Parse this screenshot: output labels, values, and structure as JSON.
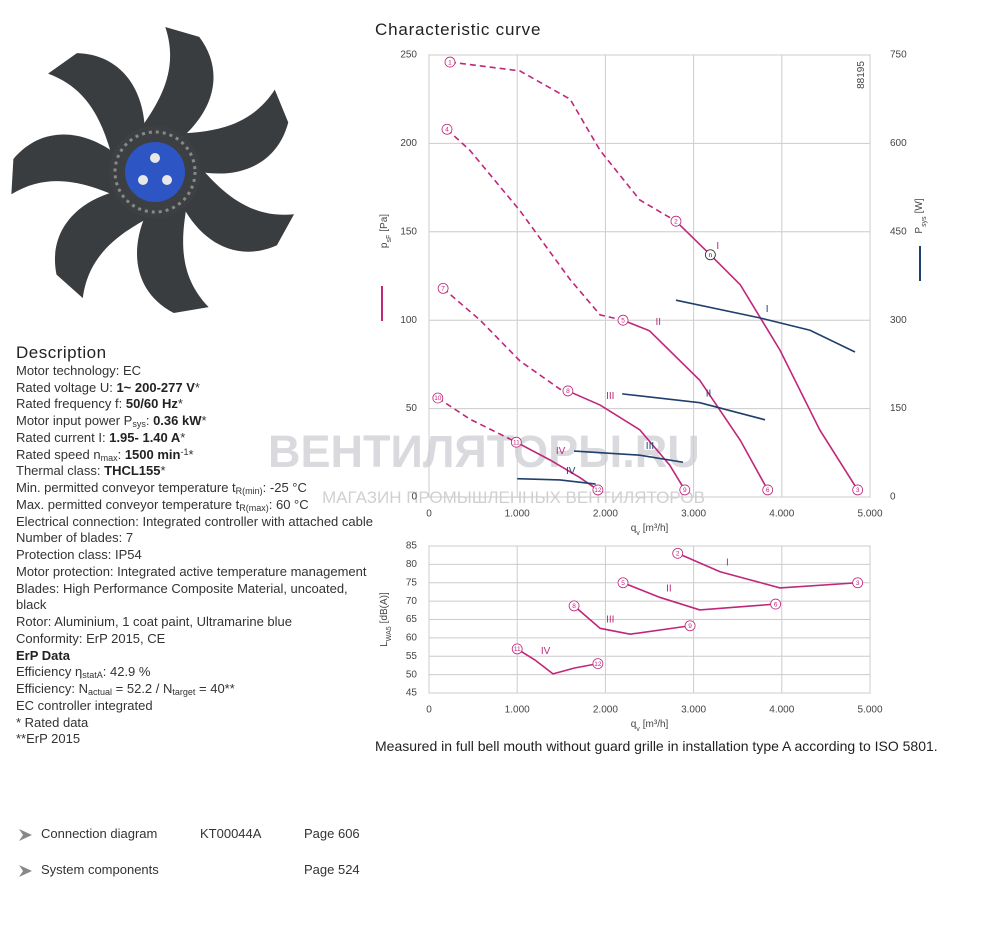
{
  "header": {
    "title": "Characteristic curve"
  },
  "watermark": {
    "main": "ВЕНТИЛЯТОРЫ.RU",
    "sub": "МАГАЗИН ПРОМЫШЛЕННЫХ ВЕНТИЛЯТОРОВ"
  },
  "description": {
    "title": "Description",
    "lines": [
      [
        "Motor technology: EC"
      ],
      [
        "Rated voltage U: ",
        {
          "t": "1~ 200-277 V",
          "s": "b"
        },
        "*"
      ],
      [
        "Rated frequency f: ",
        {
          "t": "50/60 Hz",
          "s": "b"
        },
        "*"
      ],
      [
        "Motor input power P",
        {
          "t": "sys",
          "s": "sub"
        },
        ": ",
        {
          "t": "0.36 kW",
          "s": "b"
        },
        "*"
      ],
      [
        "Rated current I: ",
        {
          "t": "1.95- 1.40 A",
          "s": "b"
        },
        "*"
      ],
      [
        "Rated speed n",
        {
          "t": "max",
          "s": "sub"
        },
        ": ",
        {
          "t": "1500 min",
          "s": "b"
        },
        {
          "t": "-1",
          "s": "sup"
        },
        "*"
      ],
      [
        "Thermal class: ",
        {
          "t": "THCL155",
          "s": "b"
        },
        "*"
      ],
      [
        "Min. permitted conveyor temperature t",
        {
          "t": "R(min)",
          "s": "sub"
        },
        ": -25  °C"
      ],
      [
        "Max. permitted conveyor temperature t",
        {
          "t": "R(max)",
          "s": "sub"
        },
        ": 60  °C"
      ],
      [
        "Electrical connection: Integrated controller with attached cable"
      ],
      [
        "Number of blades: 7"
      ],
      [
        "Protection class: IP54"
      ],
      [
        "Motor protection: Integrated active temperature management"
      ],
      [
        "Blades: High Performance Composite Material, uncoated, black"
      ],
      [
        "Rotor: Aluminium, 1 coat paint, Ultramarine blue"
      ],
      [
        "Conformity: ErP 2015, CE"
      ],
      [
        {
          "t": "ErP Data",
          "s": "b"
        }
      ],
      [
        "Efficiency η",
        {
          "t": "statA",
          "s": "sub"
        },
        ": 42.9 %"
      ],
      [
        "Efficiency: N",
        {
          "t": "actual",
          "s": "sub"
        },
        " = 52.2 / N",
        {
          "t": "target",
          "s": "sub"
        },
        " = 40**"
      ],
      [
        "EC controller integrated"
      ],
      [
        "* Rated data"
      ],
      [
        "**ErP 2015"
      ]
    ]
  },
  "links": [
    {
      "name": "Connection diagram",
      "code": "KT00044A",
      "page": "Page 606"
    },
    {
      "name": "System components",
      "code": null,
      "page": "Page 524"
    }
  ],
  "note": "Measured in full bell mouth without guard grille in installation type A according to ISO 5801.",
  "chart_data": [
    {
      "type": "line",
      "annotation": "88195",
      "x_label": {
        "main": "q",
        "sub": "v",
        "unit": "[m³/h]"
      },
      "y_label": {
        "main": "p",
        "sub": "sF",
        "unit": "[Pa]",
        "color": "#c0267a"
      },
      "y2_label": {
        "main": "P",
        "sub": "sys",
        "unit": "[W]",
        "color": "#1f3f6e"
      },
      "xlim": [
        0,
        5000
      ],
      "xticks": [
        0,
        {
          "value": 1000,
          "label": "1.000"
        },
        {
          "value": 2000,
          "label": "2.000"
        },
        {
          "value": 3000,
          "label": "3.000"
        },
        {
          "value": 4000,
          "label": "4.000"
        },
        {
          "value": 5000,
          "label": "5.000"
        }
      ],
      "ylim": [
        0,
        250
      ],
      "yticks": [
        0,
        50,
        100,
        150,
        200,
        250
      ],
      "y2lim": [
        0,
        750
      ],
      "y2ticks": [
        0,
        150,
        300,
        450,
        600,
        750
      ],
      "grid": true,
      "series": [
        {
          "color": "#c0267a",
          "dashed": true,
          "x": [
            238,
            1030,
            1600,
            1940,
            2390,
            2800
          ],
          "values": [
            246,
            241,
            225,
            196,
            168,
            156
          ]
        },
        {
          "name": "I",
          "color": "#c0267a",
          "x": [
            2800,
            3190,
            3530,
            3980,
            4430,
            4860
          ],
          "values": [
            156,
            137,
            120,
            83,
            38,
            4
          ]
        },
        {
          "color": "#c0267a",
          "dashed": true,
          "x": [
            204,
            465,
            1030,
            1600,
            1940,
            2200
          ],
          "values": [
            208,
            196,
            162,
            123,
            103,
            100
          ]
        },
        {
          "name": "II",
          "color": "#c0267a",
          "x": [
            2200,
            2500,
            3070,
            3530,
            3840
          ],
          "values": [
            100,
            94,
            66,
            32,
            4
          ]
        },
        {
          "color": "#c0267a",
          "dashed": true,
          "x": [
            160,
            580,
            1030,
            1485,
            1575
          ],
          "values": [
            118,
            100,
            77,
            61,
            60
          ]
        },
        {
          "name": "III",
          "color": "#c0267a",
          "x": [
            1575,
            1940,
            2390,
            2730,
            2900
          ],
          "values": [
            60,
            52,
            38,
            18,
            4
          ]
        },
        {
          "color": "#c0267a",
          "dashed": true,
          "x": [
            100,
            465,
            990
          ],
          "values": [
            56,
            44,
            31
          ]
        },
        {
          "name": "IV",
          "color": "#c0267a",
          "x": [
            990,
            1370,
            1710,
            1915
          ],
          "values": [
            31,
            21,
            11,
            4
          ]
        },
        {
          "name": "I",
          "color": "#1f3f6e",
          "axis": "y2",
          "x": [
            2800,
            3750,
            4320,
            4830
          ],
          "values": [
            334,
            304,
            283,
            246
          ]
        },
        {
          "name": "II",
          "color": "#1f3f6e",
          "axis": "y2",
          "x": [
            2190,
            3070,
            3810
          ],
          "values": [
            175,
            160,
            131
          ]
        },
        {
          "name": "III",
          "color": "#1f3f6e",
          "axis": "y2",
          "x": [
            1645,
            2390,
            2880
          ],
          "values": [
            78,
            71,
            59
          ]
        },
        {
          "name": "IV",
          "color": "#1f3f6e",
          "axis": "y2",
          "x": [
            1000,
            1485,
            1890
          ],
          "values": [
            31,
            29,
            22
          ]
        }
      ],
      "points": [
        {
          "label": "1",
          "x": 238,
          "y": 246,
          "color": "#c0267a"
        },
        {
          "label": "2",
          "x": 2800,
          "y": 156,
          "color": "#c0267a"
        },
        {
          "label": "3",
          "x": 4860,
          "y": 4,
          "color": "#c0267a"
        },
        {
          "label": "4",
          "x": 204,
          "y": 208,
          "color": "#c0267a"
        },
        {
          "label": "5",
          "x": 2200,
          "y": 100,
          "color": "#c0267a"
        },
        {
          "label": "6",
          "x": 3840,
          "y": 4,
          "color": "#c0267a"
        },
        {
          "label": "7",
          "x": 160,
          "y": 118,
          "color": "#c0267a"
        },
        {
          "label": "8",
          "x": 1575,
          "y": 60,
          "color": "#c0267a"
        },
        {
          "label": "9",
          "x": 2900,
          "y": 4,
          "color": "#c0267a"
        },
        {
          "label": "10",
          "x": 100,
          "y": 56,
          "color": "#c0267a"
        },
        {
          "label": "11",
          "x": 990,
          "y": 31,
          "color": "#c0267a"
        },
        {
          "label": "12",
          "x": 1915,
          "y": 4,
          "color": "#c0267a"
        },
        {
          "label": "n",
          "x": 3190,
          "y": 137,
          "color": "#222222"
        }
      ]
    },
    {
      "type": "line",
      "x_label": {
        "main": "q",
        "sub": "v",
        "unit": "[m³/h]"
      },
      "y_label": {
        "main": "L",
        "sub": "WA5",
        "unit": "[dB(A)]"
      },
      "xlim": [
        0,
        5000
      ],
      "xticks": [
        0,
        {
          "value": 1000,
          "label": "1.000"
        },
        {
          "value": 2000,
          "label": "2.000"
        },
        {
          "value": 3000,
          "label": "3.000"
        },
        {
          "value": 4000,
          "label": "4.000"
        },
        {
          "value": 5000,
          "label": "5.000"
        }
      ],
      "ylim": [
        45,
        85
      ],
      "yticks": [
        45,
        50,
        55,
        60,
        65,
        70,
        75,
        80,
        85
      ],
      "grid": true,
      "series": [
        {
          "name": "I",
          "color": "#c0267a",
          "x": [
            2820,
            3300,
            3980,
            4860
          ],
          "values": [
            83,
            78,
            73.6,
            75
          ]
        },
        {
          "name": "II",
          "color": "#c0267a",
          "x": [
            2200,
            2620,
            3070,
            3930
          ],
          "values": [
            75,
            71,
            67.6,
            69.2
          ]
        },
        {
          "name": "III",
          "color": "#c0267a",
          "x": [
            1645,
            1940,
            2280,
            2960
          ],
          "values": [
            68.7,
            62.6,
            61,
            63.3
          ]
        },
        {
          "name": "IV",
          "color": "#c0267a",
          "x": [
            1000,
            1200,
            1406,
            1650,
            1915
          ],
          "values": [
            57,
            54,
            50.2,
            51.8,
            53
          ]
        }
      ],
      "points": [
        {
          "label": "2",
          "x": 2820,
          "y": 83,
          "color": "#c0267a"
        },
        {
          "label": "3",
          "x": 4860,
          "y": 75,
          "color": "#c0267a"
        },
        {
          "label": "5",
          "x": 2200,
          "y": 75,
          "color": "#c0267a"
        },
        {
          "label": "6",
          "x": 3930,
          "y": 69.2,
          "color": "#c0267a"
        },
        {
          "label": "8",
          "x": 1645,
          "y": 68.7,
          "color": "#c0267a"
        },
        {
          "label": "9",
          "x": 2960,
          "y": 63.3,
          "color": "#c0267a"
        },
        {
          "label": "11",
          "x": 1000,
          "y": 57,
          "color": "#c0267a"
        },
        {
          "label": "12",
          "x": 1915,
          "y": 53,
          "color": "#c0267a"
        }
      ]
    }
  ]
}
